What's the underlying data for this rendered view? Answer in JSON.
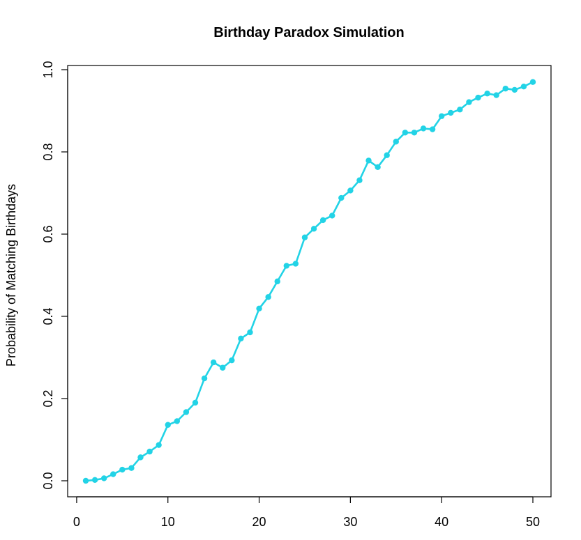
{
  "chart_data": {
    "type": "line",
    "title": "Birthday Paradox Simulation",
    "xlabel": "",
    "ylabel": "Probability of Matching Birthdays",
    "xlim": [
      1,
      50
    ],
    "ylim": [
      0,
      1
    ],
    "x_ticks": [
      0,
      10,
      20,
      30,
      40,
      50
    ],
    "y_ticks": [
      0.0,
      0.2,
      0.4,
      0.6,
      0.8,
      1.0
    ],
    "y_tick_labels": [
      "0.0",
      "0.2",
      "0.4",
      "0.6",
      "0.8",
      "1.0"
    ],
    "grid": false,
    "legend": "none",
    "series": [
      {
        "color": "#22d3e6",
        "marker": "filled-circle",
        "x": [
          1,
          2,
          3,
          4,
          5,
          6,
          7,
          8,
          9,
          10,
          11,
          12,
          13,
          14,
          15,
          16,
          17,
          18,
          19,
          20,
          21,
          22,
          23,
          24,
          25,
          26,
          27,
          28,
          29,
          30,
          31,
          32,
          33,
          34,
          35,
          36,
          37,
          38,
          39,
          40,
          41,
          42,
          43,
          44,
          45,
          46,
          47,
          48,
          49,
          50
        ],
        "values": [
          0.0,
          0.002,
          0.006,
          0.016,
          0.027,
          0.031,
          0.057,
          0.071,
          0.087,
          0.136,
          0.145,
          0.167,
          0.19,
          0.249,
          0.288,
          0.275,
          0.293,
          0.346,
          0.361,
          0.419,
          0.447,
          0.485,
          0.523,
          0.528,
          0.592,
          0.613,
          0.634,
          0.645,
          0.688,
          0.706,
          0.731,
          0.779,
          0.763,
          0.792,
          0.825,
          0.847,
          0.847,
          0.857,
          0.855,
          0.887,
          0.895,
          0.903,
          0.921,
          0.932,
          0.942,
          0.938,
          0.954,
          0.951,
          0.959,
          0.97
        ]
      }
    ]
  }
}
